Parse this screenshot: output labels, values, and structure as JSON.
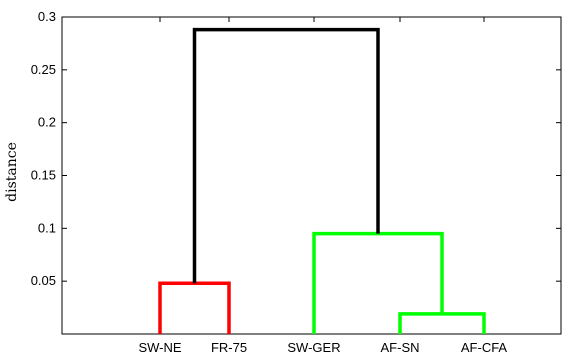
{
  "chart_data": {
    "type": "dendrogram",
    "ylabel": "distance",
    "ylim": [
      0,
      0.3
    ],
    "yticks": [
      0.05,
      0.1,
      0.15,
      0.2,
      0.25,
      0.3
    ],
    "ytick_labels": [
      "0.05",
      "0.1",
      "0.15",
      "0.2",
      "0.25",
      "0.3"
    ],
    "leaves": [
      "SW-NE",
      "FR-75",
      "SW-GER",
      "AF-SN",
      "AF-CFA"
    ],
    "merges": [
      {
        "left": "AF-SN",
        "right": "AF-CFA",
        "height": 0.019,
        "color": "#00ff00"
      },
      {
        "left": "SW-NE",
        "right": "FR-75",
        "height": 0.048,
        "color": "#ff0000"
      },
      {
        "left": "SW-GER",
        "right": "AF-SN+AF-CFA",
        "height": 0.095,
        "color": "#00ff00"
      },
      {
        "left": "SW-NE+FR-75",
        "right": "SW-GER+AF-SN+AF-CFA",
        "height": 0.288,
        "color": "#000000"
      }
    ],
    "grid": false
  }
}
